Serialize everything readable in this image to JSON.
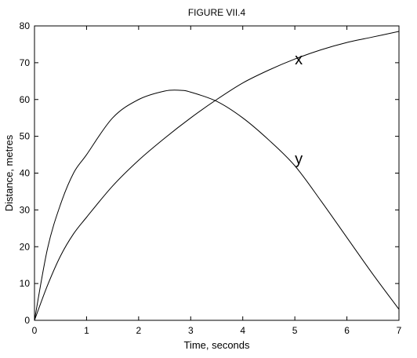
{
  "chart_data": {
    "type": "line",
    "title": "FIGURE VII.4",
    "xlabel": "Time, seconds",
    "ylabel": "Distance, metres",
    "xlim": [
      0,
      7
    ],
    "ylim": [
      0,
      80
    ],
    "xticks": [
      "0",
      "1",
      "2",
      "3",
      "4",
      "5",
      "6",
      "7"
    ],
    "yticks": [
      "0",
      "10",
      "20",
      "30",
      "40",
      "50",
      "60",
      "70",
      "80"
    ],
    "grid": false,
    "legend": "none",
    "series": [
      {
        "name": "x",
        "label_at": [
          5,
          71
        ],
        "x": [
          0,
          0.25,
          0.5,
          0.75,
          1,
          1.5,
          2,
          2.5,
          3,
          3.5,
          4,
          4.5,
          5,
          5.5,
          6,
          6.5,
          7
        ],
        "y": [
          0,
          9.5,
          17.5,
          23.5,
          28,
          36.5,
          43.5,
          49.5,
          55,
          60,
          64.5,
          68,
          71,
          73.5,
          75.5,
          77,
          78.5
        ]
      },
      {
        "name": "y",
        "label_at": [
          5,
          44
        ],
        "x": [
          0,
          0.25,
          0.5,
          0.75,
          1,
          1.5,
          2,
          2.5,
          2.8,
          3,
          3.5,
          4,
          4.5,
          5,
          5.5,
          6,
          6.5,
          7
        ],
        "y": [
          0,
          19.5,
          31.5,
          40,
          45,
          55,
          60,
          62.3,
          62.5,
          62,
          59.5,
          55,
          49,
          42,
          32.5,
          22.5,
          12.5,
          3
        ]
      }
    ]
  }
}
